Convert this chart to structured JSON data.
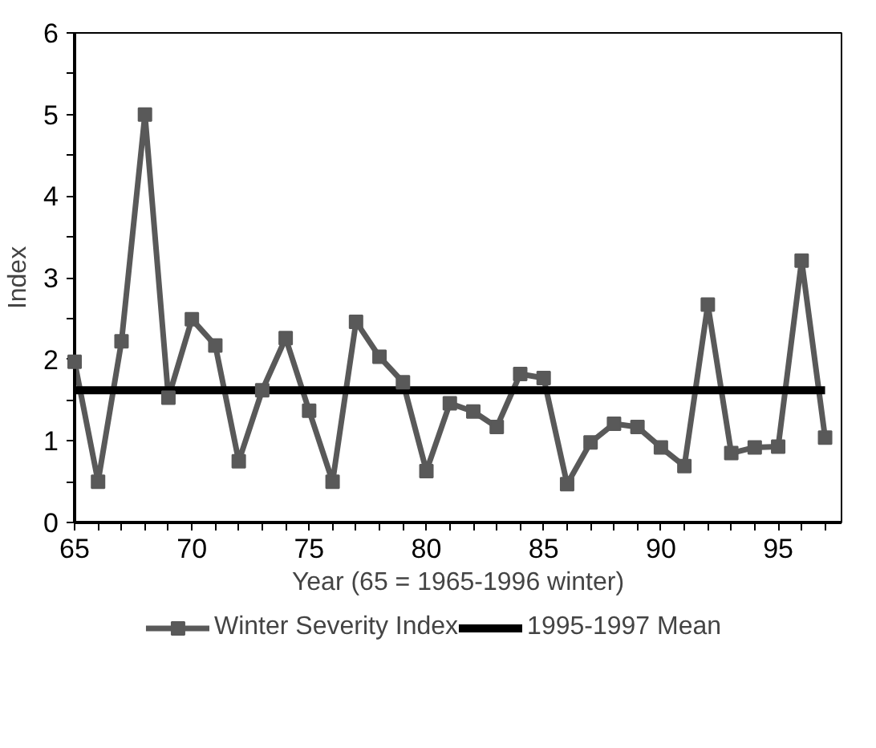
{
  "chart_data": {
    "type": "line",
    "xlabel": "Year (65 = 1965-1996 winter)",
    "ylabel": "Index",
    "x": [
      65,
      66,
      67,
      68,
      69,
      70,
      71,
      72,
      73,
      74,
      75,
      76,
      77,
      78,
      79,
      80,
      81,
      82,
      83,
      84,
      85,
      86,
      87,
      88,
      89,
      90,
      91,
      92,
      93,
      94,
      95,
      96,
      97
    ],
    "series": [
      {
        "name": "Winter Severity Index",
        "color": "#595959",
        "marker": "square",
        "values": [
          1.97,
          0.5,
          2.22,
          5.0,
          1.53,
          2.49,
          2.17,
          0.75,
          1.62,
          2.26,
          1.37,
          0.5,
          2.46,
          2.03,
          1.72,
          0.63,
          1.46,
          1.36,
          1.17,
          1.82,
          1.77,
          0.47,
          0.98,
          1.21,
          1.17,
          0.92,
          0.69,
          2.67,
          0.85,
          0.92,
          0.93,
          3.21,
          1.04
        ]
      },
      {
        "name": "1995-1997 Mean",
        "color": "#000000",
        "marker": "none",
        "x": [
          65,
          97
        ],
        "values": [
          1.62,
          1.62
        ]
      }
    ],
    "xlim": [
      65,
      97.7
    ],
    "ylim": [
      0,
      6
    ],
    "xticks": [
      65,
      {
        "value": 66,
        "label": null
      },
      {
        "value": 67,
        "label": null
      },
      {
        "value": 68,
        "label": null
      },
      {
        "value": 69,
        "label": null
      },
      70,
      {
        "value": 71,
        "label": null
      },
      {
        "value": 72,
        "label": null
      },
      {
        "value": 73,
        "label": null
      },
      {
        "value": 74,
        "label": null
      },
      75,
      {
        "value": 76,
        "label": null
      },
      {
        "value": 77,
        "label": null
      },
      {
        "value": 78,
        "label": null
      },
      {
        "value": 79,
        "label": null
      },
      80,
      {
        "value": 81,
        "label": null
      },
      {
        "value": 82,
        "label": null
      },
      {
        "value": 83,
        "label": null
      },
      {
        "value": 84,
        "label": null
      },
      85,
      {
        "value": 86,
        "label": null
      },
      {
        "value": 87,
        "label": null
      },
      {
        "value": 88,
        "label": null
      },
      {
        "value": 89,
        "label": null
      },
      90,
      {
        "value": 91,
        "label": null
      },
      {
        "value": 92,
        "label": null
      },
      {
        "value": 93,
        "label": null
      },
      {
        "value": 94,
        "label": null
      },
      95,
      {
        "value": 96,
        "label": null
      },
      {
        "value": 97,
        "label": null
      }
    ],
    "yticks": [
      0,
      {
        "value": 0.5,
        "label": null
      },
      1,
      {
        "value": 1.5,
        "label": null
      },
      2,
      {
        "value": 2.5,
        "label": null
      },
      3,
      {
        "value": 3.5,
        "label": null
      },
      4,
      {
        "value": 4.5,
        "label": null
      },
      5,
      {
        "value": 5.5,
        "label": null
      },
      6
    ],
    "grid": false,
    "legend": "bottom",
    "line_style": "solid"
  }
}
